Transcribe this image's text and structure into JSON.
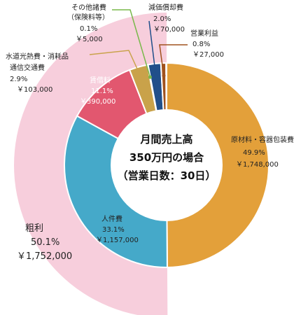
{
  "chart_data": {
    "type": "pie",
    "center_text": [
      "月間売上高",
      "350万円の場合",
      "（営業日数：30日）"
    ],
    "outer_ring": {
      "name": "粗利",
      "value_percent": 50.1,
      "value_label": "50.1%",
      "amount_label": "￥1,752,000",
      "color": "#f7cedc"
    },
    "slices": [
      {
        "name": "原材料・容器包装費",
        "percent": 49.9,
        "percent_label": "49.9%",
        "amount_label": "￥1,748,000",
        "color": "#e3a03a"
      },
      {
        "name": "人件費",
        "percent": 33.1,
        "percent_label": "33.1%",
        "amount_label": "￥1,157,000",
        "color": "#45a9c9"
      },
      {
        "name": "賃借料",
        "percent": 11.1,
        "percent_label": "11.1%",
        "amount_label": "￥390,000",
        "color": "#e2576f"
      },
      {
        "name": "水道光熱費・消耗品通信交通費",
        "name_lines": [
          "水道光熱費・消耗品",
          "通信交通費"
        ],
        "percent": 2.9,
        "percent_label": "2.9%",
        "amount_label": "￥103,000",
        "color": "#c9a24a"
      },
      {
        "name": "その他諸費（保険料等）",
        "name_lines": [
          "その他諸費",
          "（保険料等）"
        ],
        "percent": 0.1,
        "percent_label": "0.1%",
        "amount_label": "￥5,000",
        "color": "#78b84a"
      },
      {
        "name": "減価償却費",
        "percent": 2.0,
        "percent_label": "2.0%",
        "amount_label": "￥70,000",
        "color": "#214f8a"
      },
      {
        "name": "営業利益",
        "percent": 0.8,
        "percent_label": "0.8%",
        "amount_label": "￥27,000",
        "color": "#a0521e"
      }
    ]
  }
}
